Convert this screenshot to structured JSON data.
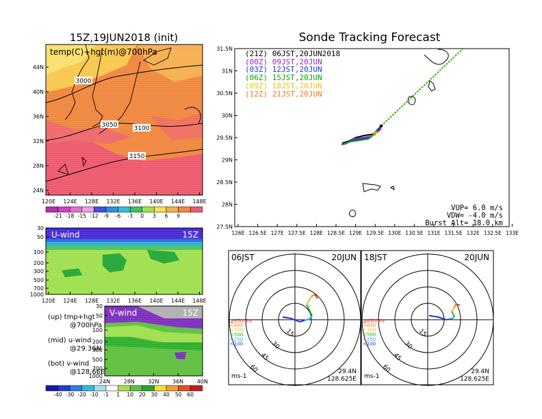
{
  "map_panel": {
    "title": "15Z,19JUN2018 (init)",
    "field_label": "temp(C)+hgt(m)@700hPa",
    "lat_labels": [
      "44N",
      "40N",
      "36N",
      "32N",
      "28N",
      "24N"
    ],
    "lon_labels": [
      "120E",
      "124E",
      "128E",
      "132E",
      "136E",
      "140E",
      "144E",
      "148E"
    ],
    "contour_labels": [
      "3000",
      "3050",
      "3100",
      "3150"
    ],
    "colorbar_labels": [
      "-21",
      "-18",
      "-15",
      "-12",
      "-9",
      "-6",
      "-3",
      "0",
      "3",
      "6",
      "9"
    ],
    "colors": {
      "warm": "#f08840",
      "hot": "#ee5a6e",
      "cool": "#f8c850",
      "label_box": "#ffffff"
    }
  },
  "tracking": {
    "title": "Sonde Tracking Forecast",
    "entries": [
      {
        "text": "(21Z) 06JST,20JUN2018",
        "color": "#000000"
      },
      {
        "text": "(00Z) 09JST,20JUN",
        "color": "#a020c0"
      },
      {
        "text": "(03Z) 12JST,20JUN",
        "color": "#1a3cd0"
      },
      {
        "text": "(06Z) 15JST,20JUN",
        "color": "#10a010"
      },
      {
        "text": "(09Z) 18JST,20JUN",
        "color": "#f0c020"
      },
      {
        "text": "(12Z) 21JST,20JUN",
        "color": "#f07820"
      }
    ],
    "lat_labels": [
      "31.5N",
      "31N",
      "30.5N",
      "30N",
      "29.5N",
      "29N",
      "28.5N",
      "28N",
      "27.5N"
    ],
    "lon_labels": [
      "126E",
      "126.5E",
      "127E",
      "127.5E",
      "128E",
      "128.5E",
      "129E",
      "129.5E",
      "130E",
      "130.5E",
      "131E",
      "131.5E",
      "132E",
      "132.5E",
      "133E"
    ],
    "params": {
      "vup": "VUP= 6.0 m/s",
      "vdw": "VDW= -4.0 m/s",
      "burst": "Burst Alt= 18.0 km"
    }
  },
  "uwind": {
    "label": "U-wind",
    "time": "15Z",
    "p_labels": [
      "30",
      "50",
      "100",
      "200",
      "300",
      "500",
      "700",
      "1000"
    ],
    "lon_labels": [
      "120E",
      "124E",
      "128E",
      "132E",
      "136E",
      "140E",
      "144E",
      "148E"
    ]
  },
  "vwind": {
    "label": "V-wind",
    "time": "15Z",
    "p_labels": [
      "30",
      "50",
      "100",
      "200",
      "300",
      "500",
      "700",
      "1000"
    ],
    "lat_labels": [
      "24N",
      "28N",
      "32N",
      "36N",
      "40N"
    ],
    "colorbar_labels": [
      "-40",
      "-30",
      "-20",
      "-10",
      "-1",
      "1",
      "10",
      "20",
      "30",
      "40",
      "50",
      "60"
    ]
  },
  "side_notes": [
    {
      "line1": "(up) tmp+hgt",
      "line2": "@700hPa"
    },
    {
      "line1": "(mid) u-wind",
      "line2": "@29.36N"
    },
    {
      "line1": "(bot) v-wind",
      "line2": "@128.66E"
    }
  ],
  "hodo_left": {
    "time": "06JST",
    "date": "20JUN",
    "ring_labels": [
      "15",
      "30",
      "45",
      "60"
    ],
    "levels": [
      {
        "text": "≧850hPa",
        "color": "#f03020"
      },
      {
        "text": "<850",
        "color": "#f08020"
      },
      {
        "text": "<700",
        "color": "#e0c020"
      },
      {
        "text": "<500",
        "color": "#20b020"
      },
      {
        "text": "<250",
        "color": "#20b0d0"
      },
      {
        "text": "<100",
        "color": "#2030e0"
      }
    ],
    "units": "ms-1",
    "lat": "29.4N",
    "lon": "128.625E"
  },
  "hodo_right": {
    "time": "18JST",
    "date": "20JUN",
    "ring_labels": [
      "15",
      "30",
      "45",
      "60"
    ],
    "levels": [
      {
        "text": "≧850hPa",
        "color": "#f03020"
      },
      {
        "text": "<850",
        "color": "#f08020"
      },
      {
        "text": "<700",
        "color": "#e0c020"
      },
      {
        "text": "<500",
        "color": "#20b020"
      },
      {
        "text": "<250",
        "color": "#20b0d0"
      },
      {
        "text": "<100",
        "color": "#2030e0"
      }
    ],
    "units": "ms-1",
    "lat": "29.4N",
    "lon": "128.625E"
  }
}
